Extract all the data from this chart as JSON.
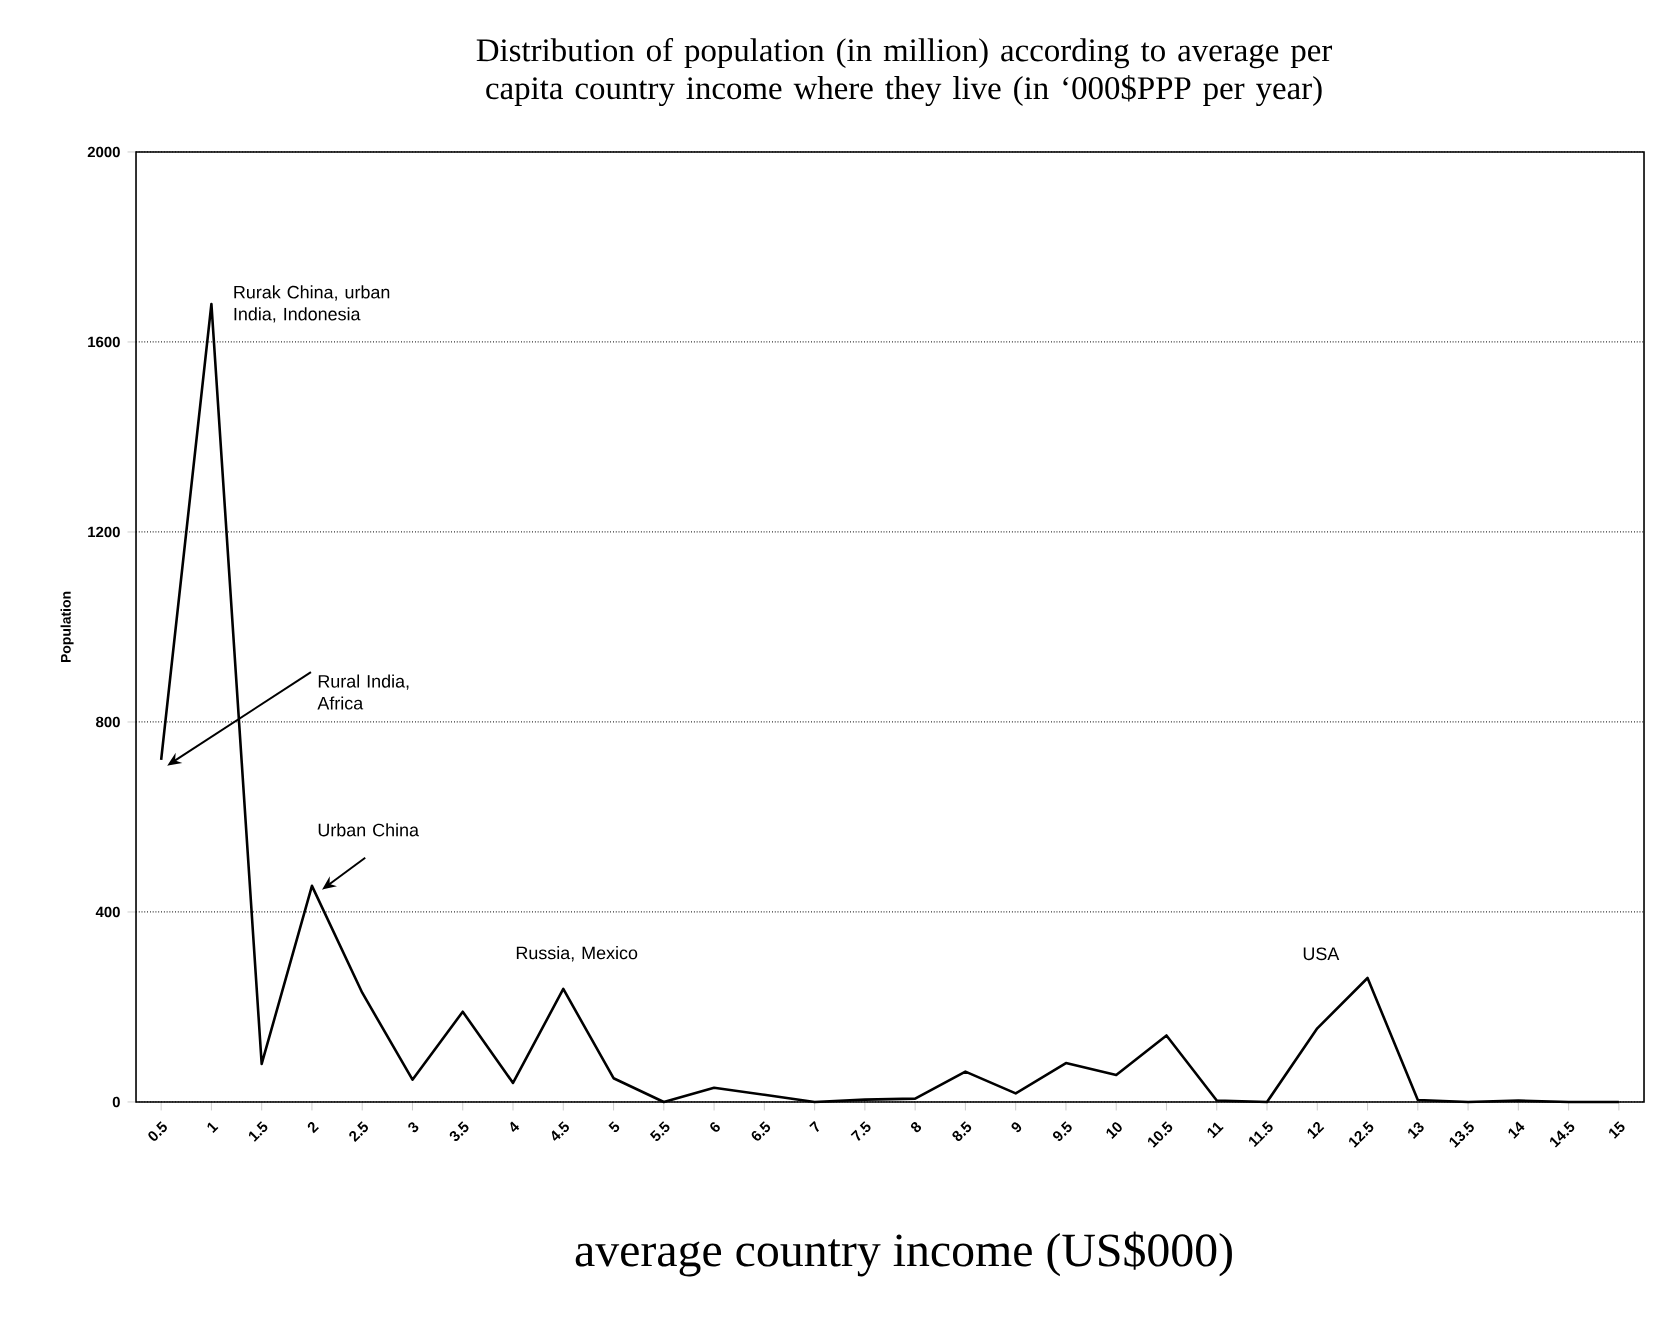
{
  "chart_data": {
    "type": "line",
    "title": "Distribution of population (in million) according to average per capita country income where they live (in ‘000$PPP per year)",
    "xlabel": "average country income (US$000)",
    "ylabel": "Population",
    "categories": [
      "0.5",
      "1",
      "1.5",
      "2",
      "2.5",
      "3",
      "3.5",
      "4",
      "4.5",
      "5",
      "5.5",
      "6",
      "6.5",
      "7",
      "7.5",
      "8",
      "8.5",
      "9",
      "9.5",
      "10",
      "10.5",
      "11",
      "11.5",
      "12",
      "12.5",
      "13",
      "13.5",
      "14",
      "14.5",
      "15"
    ],
    "values": [
      720,
      1680,
      80,
      455,
      230,
      47,
      190,
      40,
      238,
      50,
      0,
      30,
      15,
      0,
      5,
      7,
      64,
      18,
      82,
      57,
      140,
      3,
      0,
      155,
      261,
      4,
      0,
      3,
      0,
      0
    ],
    "color": "#000000",
    "ylim": [
      0,
      2000
    ],
    "yticks": [
      0,
      400,
      800,
      1200,
      1600,
      2000
    ],
    "grid": "y",
    "annotations": [
      {
        "text": "Rurak China, urban India, Indonesia",
        "x": "1",
        "y": 1680
      },
      {
        "text": "Rural India, Africa",
        "x": "0.5",
        "y": 720
      },
      {
        "text": "Urban China",
        "x": "2",
        "y": 455
      },
      {
        "text": "Russia, Mexico",
        "x": "4.5",
        "y": 238
      },
      {
        "text": "USA",
        "x": "12.5",
        "y": 261
      }
    ]
  }
}
